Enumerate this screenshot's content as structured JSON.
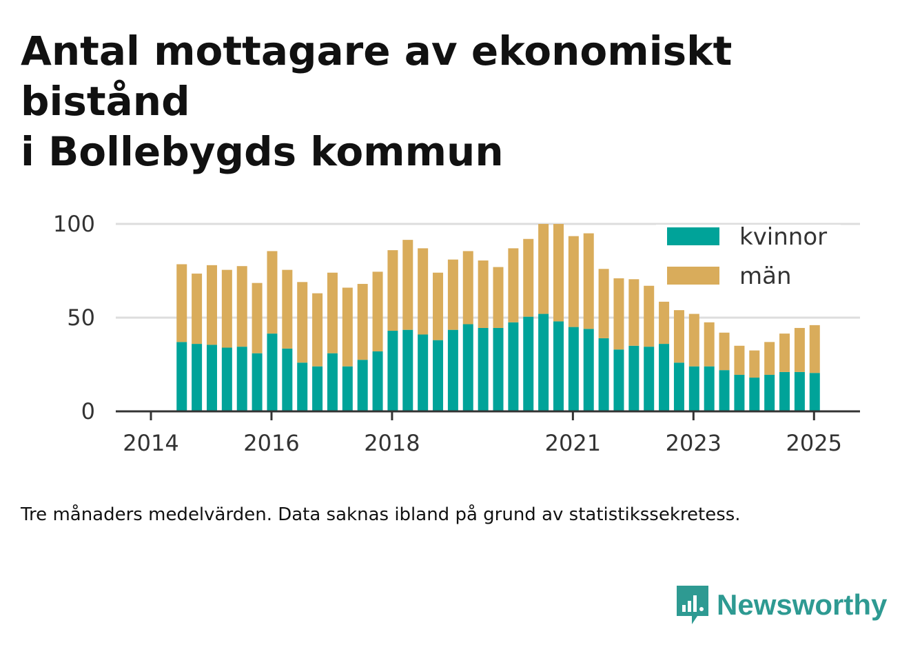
{
  "title_line1": "Antal mottagare av ekonomiskt bistånd",
  "title_line2": "i Bollebygds kommun",
  "note": "Tre månaders medelvärden. Data saknas ibland på grund av statistikssekretess.",
  "brand": {
    "name": "Newsworthy",
    "color": "#2e9a92",
    "icon": "newsworthy-logo-icon"
  },
  "chart_data": {
    "type": "bar",
    "stacked": true,
    "x_start": "2014-07",
    "x_step_months": 3,
    "x_ticks": [
      {
        "date": "2014-01",
        "label": "2014"
      },
      {
        "date": "2016-01",
        "label": "2016"
      },
      {
        "date": "2018-01",
        "label": "2018"
      },
      {
        "date": "2021-01",
        "label": "2021"
      },
      {
        "date": "2023-01",
        "label": "2023"
      },
      {
        "date": "2025-01",
        "label": "2025"
      }
    ],
    "y_ticks": [
      0,
      50,
      100
    ],
    "ylim": [
      0,
      100
    ],
    "grid": true,
    "legend_position": "top-right",
    "series": [
      {
        "name": "kvinnor",
        "color": "#00a399",
        "values": [
          37,
          36,
          35.5,
          34,
          34.5,
          31,
          41.5,
          33.5,
          26,
          24,
          31,
          24,
          27.5,
          32,
          43,
          43.5,
          41,
          38,
          43.5,
          46.5,
          44.5,
          44.5,
          47.5,
          50.5,
          52,
          48,
          45,
          44,
          39,
          33,
          35,
          34.5,
          36,
          26,
          24,
          24,
          22,
          19.5,
          18,
          19.5,
          21,
          21,
          20.5
        ]
      },
      {
        "name": "män",
        "color": "#d9ac5b",
        "values": [
          41.5,
          37.5,
          42.5,
          41.5,
          43,
          37.5,
          44,
          42,
          43,
          39,
          43,
          42,
          40.5,
          42.5,
          43,
          48,
          46,
          36,
          37.5,
          39,
          36,
          32.5,
          39.5,
          41.5,
          48,
          52,
          48.5,
          51,
          37,
          38,
          35.5,
          32.5,
          22.5,
          28,
          28,
          23.5,
          20,
          15.5,
          14.5,
          17.5,
          20.5,
          23.5,
          25.5
        ]
      }
    ]
  }
}
